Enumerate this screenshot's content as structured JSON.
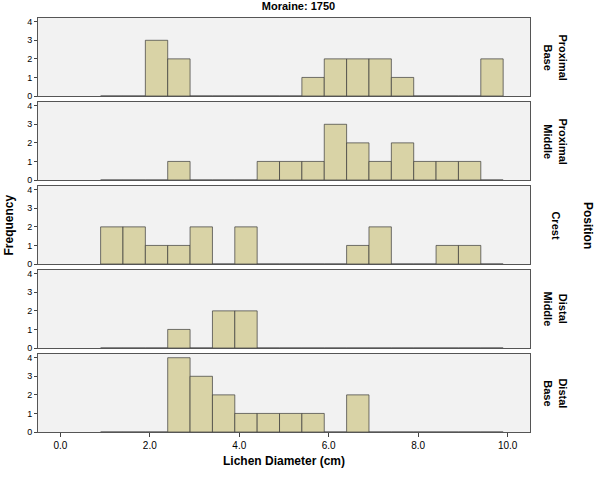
{
  "chart_data": {
    "type": "histogram",
    "title": "Moraine: 1750",
    "x_label": "Lichen Diameter (cm)",
    "y_label": "Frequency",
    "facet_label": "Position",
    "bins": [
      0.9,
      1.4,
      1.9,
      2.4,
      2.9,
      3.4,
      3.9,
      4.4,
      4.9,
      5.4,
      5.9,
      6.4,
      6.9,
      7.4,
      7.9,
      8.4,
      8.9,
      9.4,
      9.9
    ],
    "series": [
      {
        "name": "Proximal Base",
        "values": [
          0,
          0,
          3,
          2,
          0,
          0,
          0,
          0,
          0,
          1,
          2,
          2,
          2,
          1,
          0,
          0,
          0,
          2
        ]
      },
      {
        "name": "Proximal Middle",
        "values": [
          0,
          0,
          0,
          1,
          0,
          0,
          0,
          1,
          1,
          1,
          3,
          2,
          1,
          2,
          1,
          1,
          1,
          0
        ]
      },
      {
        "name": "Crest",
        "values": [
          2,
          2,
          1,
          1,
          2,
          0,
          2,
          0,
          0,
          0,
          0,
          1,
          2,
          0,
          0,
          1,
          1,
          0
        ]
      },
      {
        "name": "Distal Middle",
        "values": [
          0,
          0,
          0,
          1,
          0,
          2,
          2,
          0,
          0,
          0,
          0,
          0,
          0,
          0,
          0,
          0,
          0,
          0
        ]
      },
      {
        "name": "Distal Base",
        "values": [
          0,
          0,
          0,
          4,
          3,
          2,
          1,
          1,
          1,
          1,
          0,
          2,
          0,
          0,
          0,
          0,
          0,
          0
        ]
      }
    ],
    "color": "#d9d3a6",
    "xlim": [
      -0.5,
      10.5
    ],
    "xticks": [
      {
        "value": 0,
        "label": "0.0"
      },
      {
        "value": 2,
        "label": "2.0"
      },
      {
        "value": 4,
        "label": "4.0"
      },
      {
        "value": 6,
        "label": "6.0"
      },
      {
        "value": 8,
        "label": "8.0"
      },
      {
        "value": 10,
        "label": "10.0"
      }
    ],
    "ylim": [
      0,
      4.2
    ],
    "yticks": [
      0,
      1,
      2,
      3,
      4
    ],
    "grid": false
  }
}
